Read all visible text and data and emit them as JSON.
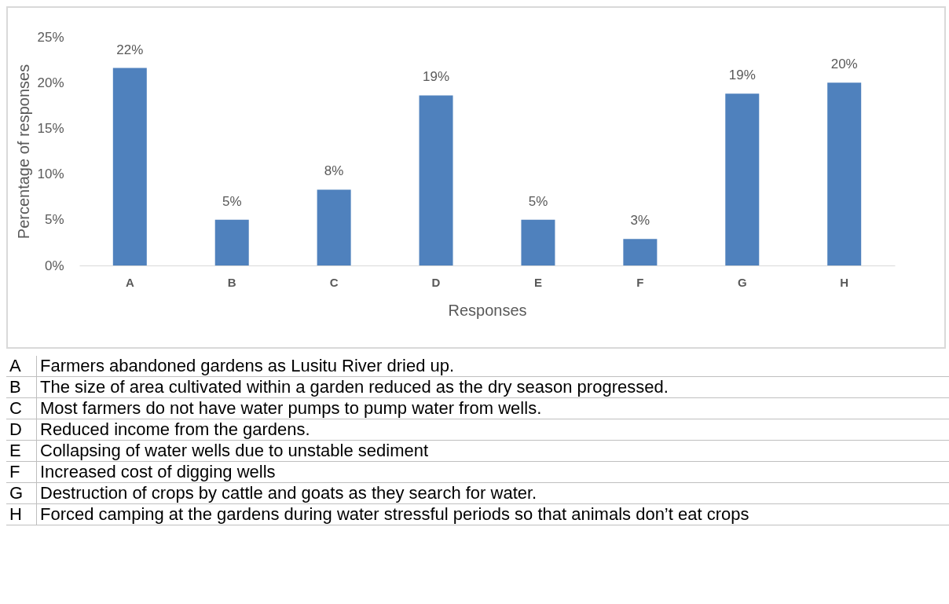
{
  "chart_data": {
    "type": "bar",
    "xlabel": "Responses",
    "ylabel": "Percentage of responses",
    "categories": [
      "A",
      "B",
      "C",
      "D",
      "E",
      "F",
      "G",
      "H"
    ],
    "values": [
      21.6,
      5.0,
      8.3,
      18.6,
      5.0,
      2.9,
      18.8,
      20.0
    ],
    "value_labels": [
      "22%",
      "5%",
      "8%",
      "19%",
      "5%",
      "3%",
      "19%",
      "20%"
    ],
    "color": "#4f81bd",
    "ylim": [
      0,
      25
    ],
    "yticks": [
      {
        "value": 0,
        "label": "0%"
      },
      {
        "value": 5,
        "label": "5%"
      },
      {
        "value": 10,
        "label": "10%"
      },
      {
        "value": 15,
        "label": "15%"
      },
      {
        "value": 20,
        "label": "20%"
      },
      {
        "value": 25,
        "label": "25%"
      }
    ],
    "grid": false,
    "annotations": [
      "Farmers abandoned gardens as Lusitu River dried up.",
      "The size of area cultivated within a garden reduced as the dry season progressed.",
      "Most farmers do not have water pumps to pump water from wells.",
      "Reduced income from the gardens.",
      "Collapsing of water wells due to unstable sediment",
      "Increased cost of digging wells",
      "Destruction of crops by cattle and goats as they search for water.",
      "Forced camping at the gardens during water stressful periods so that animals don’t eat crops"
    ]
  }
}
